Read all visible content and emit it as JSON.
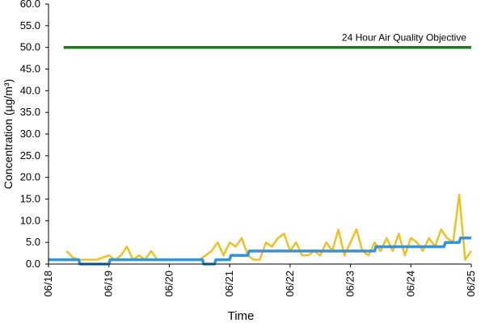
{
  "chart_data": {
    "type": "line",
    "xlabel": "Time",
    "ylabel": "Concentration (µg/m³)",
    "annotation": "24 Hour Air Quality Objective",
    "xlim": [
      0,
      7
    ],
    "xticks": [
      {
        "value": 0,
        "label": "06/18"
      },
      {
        "value": 1,
        "label": "06/19"
      },
      {
        "value": 2,
        "label": "06/20"
      },
      {
        "value": 3,
        "label": "06/21"
      },
      {
        "value": 4,
        "label": "06/22"
      },
      {
        "value": 5,
        "label": "06/23"
      },
      {
        "value": 6,
        "label": "06/24"
      },
      {
        "value": 7,
        "label": "06/25"
      }
    ],
    "ylim": [
      0,
      60
    ],
    "yticks": [
      {
        "value": 0,
        "label": "0.0"
      },
      {
        "value": 5,
        "label": "5.0"
      },
      {
        "value": 10,
        "label": "10.0"
      },
      {
        "value": 15,
        "label": "15.0"
      },
      {
        "value": 20,
        "label": "20.0"
      },
      {
        "value": 25,
        "label": "25.0"
      },
      {
        "value": 30,
        "label": "30.0"
      },
      {
        "value": 35,
        "label": "35.0"
      },
      {
        "value": 40,
        "label": "40.0"
      },
      {
        "value": 45,
        "label": "45.0"
      },
      {
        "value": 50,
        "label": "50.0"
      },
      {
        "value": 55,
        "label": "55.0"
      },
      {
        "value": 60,
        "label": "60.0"
      }
    ],
    "grid": false,
    "series": [
      {
        "color": "#1e7b1e",
        "width": 3.5,
        "x": [
          0.25,
          7
        ],
        "values": [
          50,
          50
        ]
      },
      {
        "color": "#f0c020",
        "width": 2.5,
        "x": [
          0.3,
          0.4,
          0.5,
          0.6,
          0.7,
          0.8,
          0.9,
          1.0,
          1.1,
          1.2,
          1.3,
          1.4,
          1.5,
          1.6,
          1.7,
          1.8,
          1.9,
          2.0,
          2.1,
          2.2,
          2.3,
          2.4,
          2.5,
          2.6,
          2.7,
          2.8,
          2.9,
          3.0,
          3.1,
          3.2,
          3.3,
          3.4,
          3.5,
          3.6,
          3.7,
          3.8,
          3.9,
          4.0,
          4.1,
          4.2,
          4.3,
          4.4,
          4.5,
          4.6,
          4.7,
          4.8,
          4.9,
          5.0,
          5.1,
          5.2,
          5.3,
          5.4,
          5.5,
          5.6,
          5.7,
          5.8,
          5.9,
          6.0,
          6.1,
          6.2,
          6.3,
          6.4,
          6.5,
          6.6,
          6.7,
          6.8,
          6.9,
          7.0
        ],
        "values": [
          3,
          1.5,
          1,
          1,
          1,
          1,
          1.5,
          2,
          1,
          2,
          4,
          1,
          2,
          1,
          3,
          1,
          1,
          1,
          1,
          1,
          1,
          1,
          1,
          2,
          3,
          5,
          2,
          5,
          4,
          6,
          2,
          1,
          1,
          5,
          4,
          6,
          7,
          3,
          5,
          2,
          2,
          3,
          2,
          5,
          3,
          8,
          2,
          5,
          8,
          3,
          2,
          5,
          3,
          6,
          3,
          7,
          2,
          6,
          5,
          3,
          6,
          4,
          8,
          6,
          5,
          16,
          1,
          3
        ]
      },
      {
        "color": "#2f95de",
        "width": 3.5,
        "x": [
          0,
          0.5,
          0.52,
          1.0,
          1.02,
          2.55,
          2.57,
          2.75,
          2.77,
          3.0,
          3.02,
          3.3,
          3.32,
          5.4,
          5.42,
          6.55,
          6.57,
          6.8,
          6.82,
          7.0
        ],
        "values": [
          1,
          1,
          0,
          0,
          1,
          1,
          0,
          0,
          1,
          1,
          2,
          2,
          3,
          3,
          4,
          4,
          5,
          5,
          6,
          6
        ]
      }
    ]
  }
}
